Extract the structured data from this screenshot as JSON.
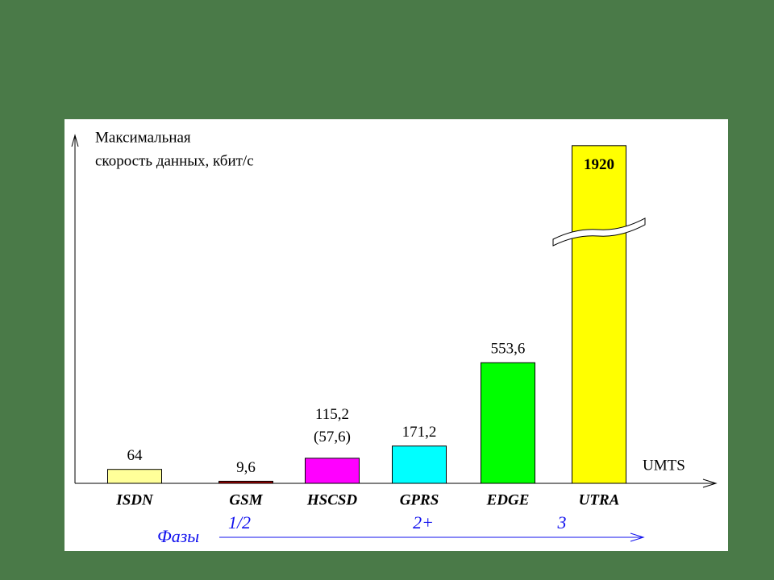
{
  "chart_data": {
    "type": "bar",
    "ylabel": [
      "Максимальная",
      "скорость данных, кбит/с"
    ],
    "categories": [
      "ISDN",
      "GSM",
      "HSCSD",
      "GPRS",
      "EDGE",
      "UTRA"
    ],
    "values": [
      64,
      9.6,
      115.2,
      171.2,
      553.6,
      1920
    ],
    "value_labels": [
      "64",
      "9,6",
      "115,2",
      "171,2",
      "553,6",
      "1920"
    ],
    "value_sublabels": [
      null,
      null,
      "(57,6)",
      null,
      null,
      null
    ],
    "colors": [
      "#ffff99",
      "#a00000",
      "#ff00ff",
      "#00ffff",
      "#00ff00",
      "#ffff00"
    ],
    "ylim": [
      0,
      1960
    ],
    "ybreak": [
      1150,
      1520
    ],
    "x_axis_end_label": "UMTS",
    "phases": {
      "title": "Фазы",
      "labels": [
        "1/2",
        "2+",
        "3"
      ],
      "color": "#1010ee"
    }
  }
}
